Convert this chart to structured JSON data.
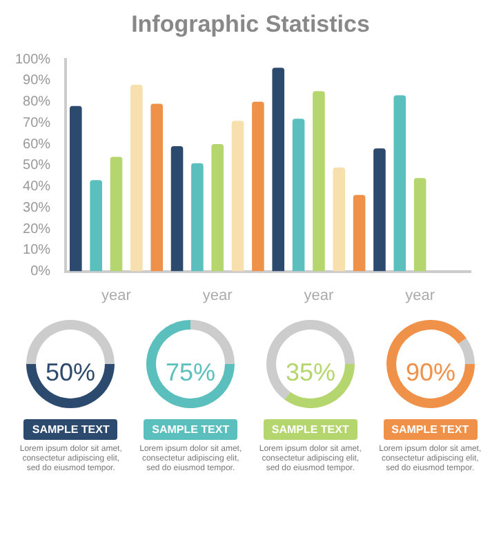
{
  "chart_data": [
    {
      "type": "bar",
      "title": "Infographic Statistics",
      "categories": [
        "year",
        "year",
        "year",
        "year"
      ],
      "series": [
        {
          "color": "#2c4a6e",
          "values": [
            78,
            59,
            96,
            58
          ]
        },
        {
          "color": "#5bbfbd",
          "values": [
            43,
            51,
            72,
            83
          ]
        },
        {
          "color": "#b5d66f",
          "values": [
            54,
            60,
            85,
            44
          ]
        },
        {
          "color": "#f7dfae",
          "values": [
            88,
            71,
            49,
            null
          ]
        },
        {
          "color": "#f0914a",
          "values": [
            79,
            80,
            36,
            null
          ]
        }
      ],
      "ylim": [
        0,
        100
      ],
      "yticks": [
        {
          "value": 0,
          "label": "0%"
        },
        {
          "value": 10,
          "label": "10%"
        },
        {
          "value": 20,
          "label": "20%"
        },
        {
          "value": 30,
          "label": "30%"
        },
        {
          "value": 40,
          "label": "40%"
        },
        {
          "value": 50,
          "label": "50%"
        },
        {
          "value": 60,
          "label": "60%"
        },
        {
          "value": 70,
          "label": "70%"
        },
        {
          "value": 80,
          "label": "80%"
        },
        {
          "value": 90,
          "label": "90%"
        },
        {
          "value": 100,
          "label": "100%"
        }
      ]
    },
    {
      "type": "donut",
      "title": "SAMPLE TEXT",
      "categories": [
        null,
        null
      ],
      "values": [
        50,
        50
      ],
      "colors": [
        "#2c4a6e",
        "#cccccc"
      ],
      "value_labels": [
        "50%",
        null
      ],
      "annotations": [
        "Lorem ipsum dolor sit amet, consectetur adipiscing elit, sed do eiusmod tempor."
      ]
    },
    {
      "type": "donut",
      "title": "SAMPLE TEXT",
      "categories": [
        null,
        null
      ],
      "values": [
        75,
        25
      ],
      "colors": [
        "#5bbfbd",
        "#cccccc"
      ],
      "value_labels": [
        "75%",
        null
      ],
      "annotations": [
        "Lorem ipsum dolor sit amet, consectetur adipiscing elit, sed do eiusmod tempor."
      ]
    },
    {
      "type": "donut",
      "title": "SAMPLE TEXT",
      "categories": [
        null,
        null
      ],
      "values": [
        35,
        65
      ],
      "colors": [
        "#b5d66f",
        "#cccccc"
      ],
      "value_labels": [
        "35%",
        null
      ],
      "annotations": [
        "Lorem ipsum dolor sit amet, consectetur adipiscing elit, sed do eiusmod tempor."
      ]
    },
    {
      "type": "donut",
      "title": "SAMPLE TEXT",
      "categories": [
        null,
        null
      ],
      "values": [
        90,
        10
      ],
      "colors": [
        "#f0914a",
        "#cccccc"
      ],
      "value_labels": [
        "90%",
        null
      ],
      "annotations": [
        "Lorem ipsum dolor sit amet, consectetur adipiscing elit, sed do eiusmod tempor."
      ]
    }
  ]
}
